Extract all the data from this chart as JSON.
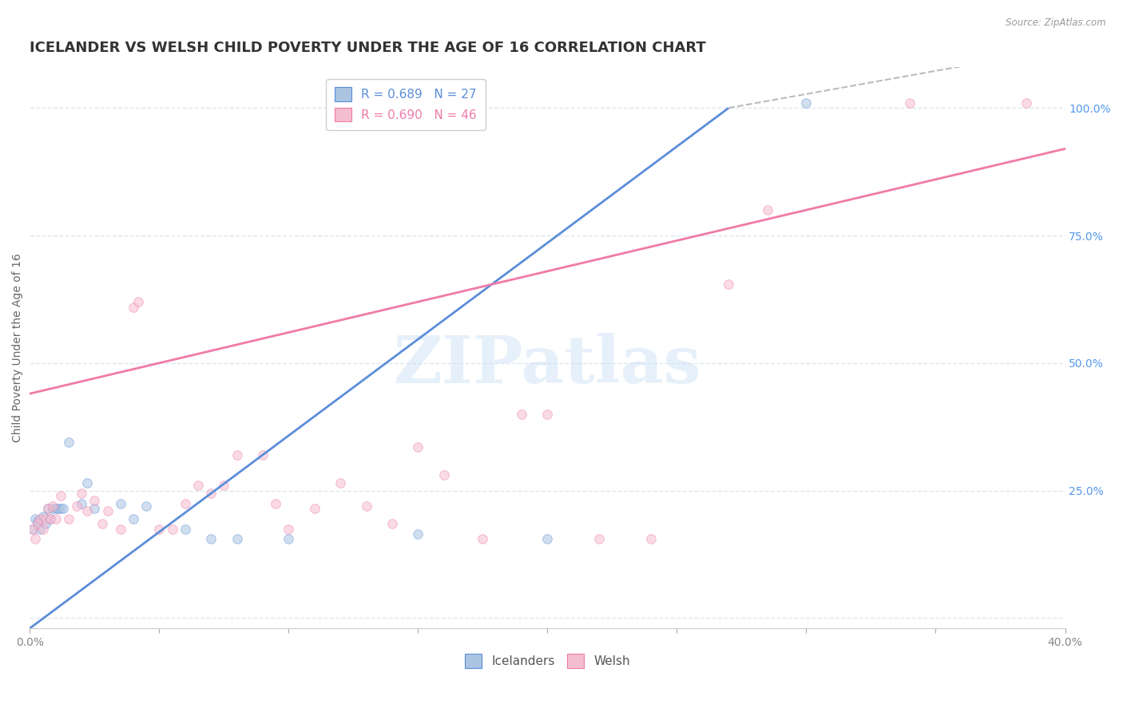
{
  "title": "ICELANDER VS WELSH CHILD POVERTY UNDER THE AGE OF 16 CORRELATION CHART",
  "source": "Source: ZipAtlas.com",
  "ylabel": "Child Poverty Under the Age of 16",
  "xlim": [
    0.0,
    0.4
  ],
  "ylim": [
    -0.02,
    1.08
  ],
  "xticks": [
    0.0,
    0.05,
    0.1,
    0.15,
    0.2,
    0.25,
    0.3,
    0.35,
    0.4
  ],
  "xticklabels_show": [
    "0.0%",
    "",
    "",
    "",
    "",
    "",
    "",
    "",
    "40.0%"
  ],
  "yticks": [
    0.0,
    0.25,
    0.5,
    0.75,
    1.0
  ],
  "yticklabels": [
    "",
    "25.0%",
    "50.0%",
    "75.0%",
    "100.0%"
  ],
  "legend_labels": [
    "R = 0.689   N = 27",
    "R = 0.690   N = 46"
  ],
  "legend_bottom_labels": [
    "Icelanders",
    "Welsh"
  ],
  "watermark": "ZIPatlas",
  "icelander_color": "#aac4e2",
  "welsh_color": "#f5bdd0",
  "icelander_line_color": "#5b8dd9",
  "welsh_line_color": "#f07aa8",
  "icelander_scatter": [
    [
      0.001,
      0.175
    ],
    [
      0.002,
      0.195
    ],
    [
      0.003,
      0.19
    ],
    [
      0.004,
      0.175
    ],
    [
      0.005,
      0.2
    ],
    [
      0.006,
      0.185
    ],
    [
      0.007,
      0.215
    ],
    [
      0.008,
      0.195
    ],
    [
      0.009,
      0.215
    ],
    [
      0.01,
      0.215
    ],
    [
      0.011,
      0.215
    ],
    [
      0.012,
      0.215
    ],
    [
      0.013,
      0.215
    ],
    [
      0.015,
      0.345
    ],
    [
      0.02,
      0.225
    ],
    [
      0.022,
      0.265
    ],
    [
      0.025,
      0.215
    ],
    [
      0.035,
      0.225
    ],
    [
      0.04,
      0.195
    ],
    [
      0.045,
      0.22
    ],
    [
      0.06,
      0.175
    ],
    [
      0.07,
      0.155
    ],
    [
      0.08,
      0.155
    ],
    [
      0.1,
      0.155
    ],
    [
      0.15,
      0.165
    ],
    [
      0.2,
      0.155
    ],
    [
      0.3,
      1.01
    ]
  ],
  "welsh_scatter": [
    [
      0.001,
      0.175
    ],
    [
      0.002,
      0.155
    ],
    [
      0.003,
      0.185
    ],
    [
      0.004,
      0.195
    ],
    [
      0.005,
      0.175
    ],
    [
      0.006,
      0.195
    ],
    [
      0.007,
      0.215
    ],
    [
      0.008,
      0.195
    ],
    [
      0.009,
      0.22
    ],
    [
      0.01,
      0.195
    ],
    [
      0.012,
      0.24
    ],
    [
      0.015,
      0.195
    ],
    [
      0.018,
      0.22
    ],
    [
      0.02,
      0.245
    ],
    [
      0.022,
      0.21
    ],
    [
      0.025,
      0.23
    ],
    [
      0.028,
      0.185
    ],
    [
      0.03,
      0.21
    ],
    [
      0.035,
      0.175
    ],
    [
      0.04,
      0.61
    ],
    [
      0.042,
      0.62
    ],
    [
      0.05,
      0.175
    ],
    [
      0.055,
      0.175
    ],
    [
      0.06,
      0.225
    ],
    [
      0.065,
      0.26
    ],
    [
      0.07,
      0.245
    ],
    [
      0.075,
      0.26
    ],
    [
      0.08,
      0.32
    ],
    [
      0.09,
      0.32
    ],
    [
      0.095,
      0.225
    ],
    [
      0.1,
      0.175
    ],
    [
      0.11,
      0.215
    ],
    [
      0.12,
      0.265
    ],
    [
      0.13,
      0.22
    ],
    [
      0.14,
      0.185
    ],
    [
      0.15,
      0.335
    ],
    [
      0.16,
      0.28
    ],
    [
      0.175,
      0.155
    ],
    [
      0.19,
      0.4
    ],
    [
      0.2,
      0.4
    ],
    [
      0.22,
      0.155
    ],
    [
      0.24,
      0.155
    ],
    [
      0.27,
      0.655
    ],
    [
      0.285,
      0.8
    ],
    [
      0.34,
      1.01
    ],
    [
      0.385,
      1.01
    ]
  ],
  "icelander_line_solid": [
    [
      0.0,
      -0.02
    ],
    [
      0.27,
      1.0
    ]
  ],
  "icelander_line_dashed": [
    [
      0.27,
      1.0
    ],
    [
      0.38,
      1.1
    ]
  ],
  "welsh_line": [
    [
      0.0,
      0.44
    ],
    [
      0.4,
      0.92
    ]
  ],
  "background_color": "#ffffff",
  "grid_color": "#dce8f0",
  "title_fontsize": 13,
  "axis_label_fontsize": 10,
  "tick_fontsize": 10,
  "legend_fontsize": 11,
  "marker_size": 70,
  "marker_alpha": 0.55,
  "right_ytick_color": "#5599ee"
}
